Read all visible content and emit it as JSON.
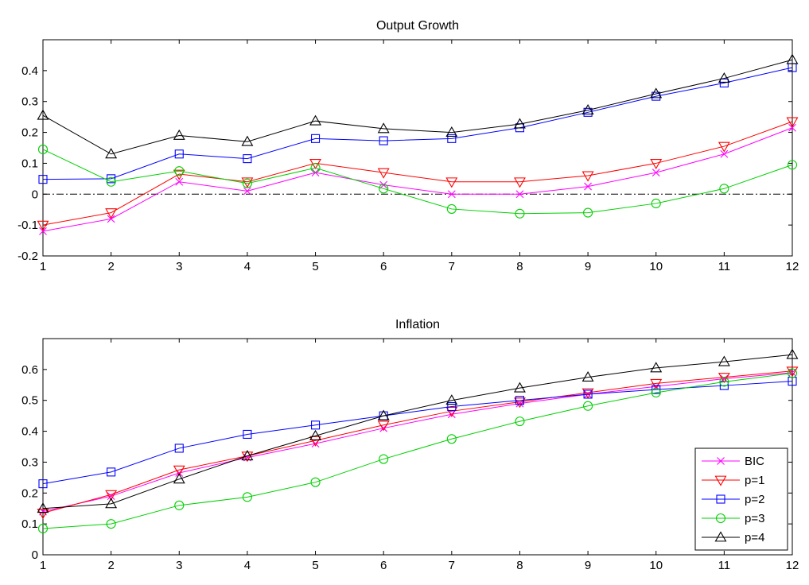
{
  "figure": {
    "background": "#ffffff"
  },
  "chart_data": [
    {
      "type": "line",
      "title": "Output Growth",
      "xlabel": "",
      "ylabel": "",
      "x": [
        1,
        2,
        3,
        4,
        5,
        6,
        7,
        8,
        9,
        10,
        11,
        12
      ],
      "xlim": [
        1,
        12
      ],
      "ylim": [
        -0.2,
        0.5
      ],
      "yticks": [
        -0.2,
        -0.1,
        0,
        0.1,
        0.2,
        0.3,
        0.4
      ],
      "ytick_labels": [
        "-0.2",
        "-0.1",
        "0",
        "0.1",
        "0.2",
        "0.3",
        "0.4"
      ],
      "xtick_labels": [
        "1",
        "2",
        "3",
        "4",
        "5",
        "6",
        "7",
        "8",
        "9",
        "10",
        "11",
        "12"
      ],
      "zero_line": {
        "y": 0,
        "style": "dash-dot",
        "color": "#000000"
      },
      "grid": false,
      "legend": null,
      "series": [
        {
          "name": "BIC",
          "color": "#ff00ff",
          "marker": "x",
          "values": [
            -0.12,
            -0.08,
            0.04,
            0.01,
            0.07,
            0.03,
            0.0,
            0.0,
            0.025,
            0.07,
            0.13,
            0.215
          ]
        },
        {
          "name": "p=1",
          "color": "#ff0000",
          "marker": "triangle-down",
          "values": [
            -0.1,
            -0.06,
            0.065,
            0.04,
            0.1,
            0.07,
            0.04,
            0.04,
            0.06,
            0.1,
            0.155,
            0.235
          ]
        },
        {
          "name": "p=2",
          "color": "#0000ff",
          "marker": "square",
          "values": [
            0.048,
            0.05,
            0.13,
            0.115,
            0.18,
            0.173,
            0.18,
            0.215,
            0.265,
            0.317,
            0.36,
            0.41
          ]
        },
        {
          "name": "p=3",
          "color": "#00d000",
          "marker": "circle",
          "values": [
            0.145,
            0.04,
            0.075,
            0.035,
            0.085,
            0.018,
            -0.048,
            -0.063,
            -0.06,
            -0.03,
            0.018,
            0.095
          ]
        },
        {
          "name": "p=4",
          "color": "#000000",
          "marker": "triangle-up",
          "values": [
            0.255,
            0.13,
            0.19,
            0.17,
            0.237,
            0.212,
            0.2,
            0.227,
            0.272,
            0.325,
            0.375,
            0.435
          ]
        }
      ]
    },
    {
      "type": "line",
      "title": "Inflation",
      "xlabel": "",
      "ylabel": "",
      "x": [
        1,
        2,
        3,
        4,
        5,
        6,
        7,
        8,
        9,
        10,
        11,
        12
      ],
      "xlim": [
        1,
        12
      ],
      "ylim": [
        0,
        0.7
      ],
      "yticks": [
        0,
        0.1,
        0.2,
        0.3,
        0.4,
        0.5,
        0.6
      ],
      "ytick_labels": [
        "0",
        "0.1",
        "0.2",
        "0.3",
        "0.4",
        "0.5",
        "0.6"
      ],
      "xtick_labels": [
        "1",
        "2",
        "3",
        "4",
        "5",
        "6",
        "7",
        "8",
        "9",
        "10",
        "11",
        "12"
      ],
      "zero_line": null,
      "grid": false,
      "legend": "bottom-right",
      "series": [
        {
          "name": "BIC",
          "color": "#ff00ff",
          "marker": "x",
          "values": [
            0.14,
            0.19,
            0.265,
            0.315,
            0.36,
            0.41,
            0.455,
            0.49,
            0.52,
            0.545,
            0.57,
            0.59
          ]
        },
        {
          "name": "p=1",
          "color": "#ff0000",
          "marker": "triangle-down",
          "values": [
            0.135,
            0.195,
            0.275,
            0.32,
            0.37,
            0.42,
            0.465,
            0.495,
            0.525,
            0.555,
            0.575,
            0.595
          ]
        },
        {
          "name": "p=2",
          "color": "#0000ff",
          "marker": "square",
          "values": [
            0.23,
            0.268,
            0.345,
            0.39,
            0.42,
            0.45,
            0.48,
            0.5,
            0.52,
            0.535,
            0.548,
            0.562
          ]
        },
        {
          "name": "p=3",
          "color": "#00d000",
          "marker": "circle",
          "values": [
            0.085,
            0.1,
            0.16,
            0.187,
            0.235,
            0.31,
            0.375,
            0.432,
            0.482,
            0.525,
            0.56,
            0.588
          ]
        },
        {
          "name": "p=4",
          "color": "#000000",
          "marker": "triangle-up",
          "values": [
            0.15,
            0.165,
            0.245,
            0.32,
            0.385,
            0.45,
            0.5,
            0.54,
            0.575,
            0.605,
            0.625,
            0.648
          ]
        }
      ]
    }
  ]
}
